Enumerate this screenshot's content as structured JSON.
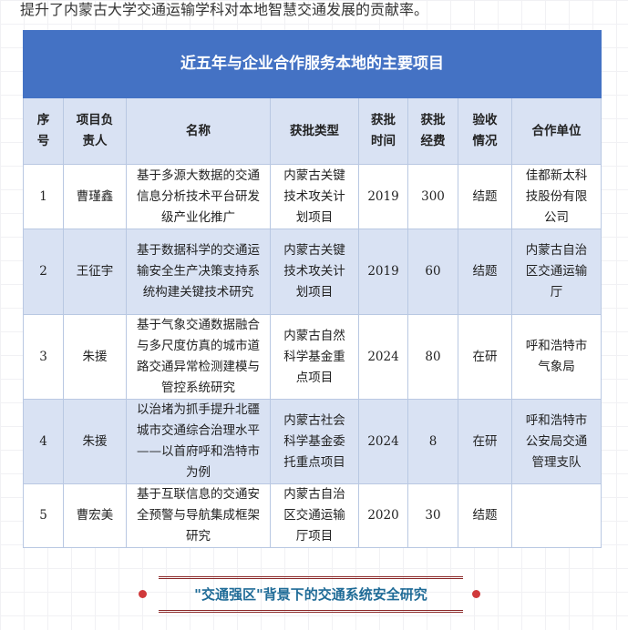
{
  "intro_text": "提升了内蒙古大学交通运输学科对本地智慧交通发展的贡献率。",
  "table": {
    "title": "近五年与企业合作服务本地的主要项目",
    "headers": [
      "序号",
      "项目负责人",
      "名称",
      "获批类型",
      "获批时间",
      "获批经费",
      "验收情况",
      "合作单位"
    ],
    "rows": [
      [
        "1",
        "曹瑾鑫",
        "基于多源大数据的交通信息分析技术平台研发级产业化推广",
        "内蒙古关键技术攻关计划项目",
        "2019",
        "300",
        "结题",
        "佳都新太科技股份有限公司"
      ],
      [
        "2",
        "王征宇",
        "基于数据科学的交通运输安全生产决策支持系统构建关键技术研究",
        "内蒙古关键技术攻关计划项目",
        "2019",
        "60",
        "结题",
        "内蒙古自治区交通运输厅"
      ],
      [
        "3",
        "朱援",
        "基于气象交通数据融合与多尺度仿真的城市道路交通异常检测建模与管控系统研究",
        "内蒙古自然科学基金重点项目",
        "2024",
        "80",
        "在研",
        "呼和浩特市气象局"
      ],
      [
        "4",
        "朱援",
        "以治堵为抓手提升北疆城市交通综合治理水平——以首府呼和浩特市为例",
        "内蒙古社会科学基金委托重点项目",
        "2024",
        "8",
        "在研",
        "呼和浩特市公安局交通管理支队"
      ],
      [
        "5",
        "曹宏美",
        "基于互联信息的交通安全预警与导航集成框架研究",
        "内蒙古自治区交通运输厅项目",
        "2020",
        "30",
        "结题",
        ""
      ]
    ]
  },
  "section_heading": "\"交通强区\"背景下的交通系统安全研究",
  "colors": {
    "header_blue": "#4472c4",
    "row_alt": "#d9e2f3",
    "heading_text": "#1f6b97",
    "accent_red": "#d0393b"
  }
}
